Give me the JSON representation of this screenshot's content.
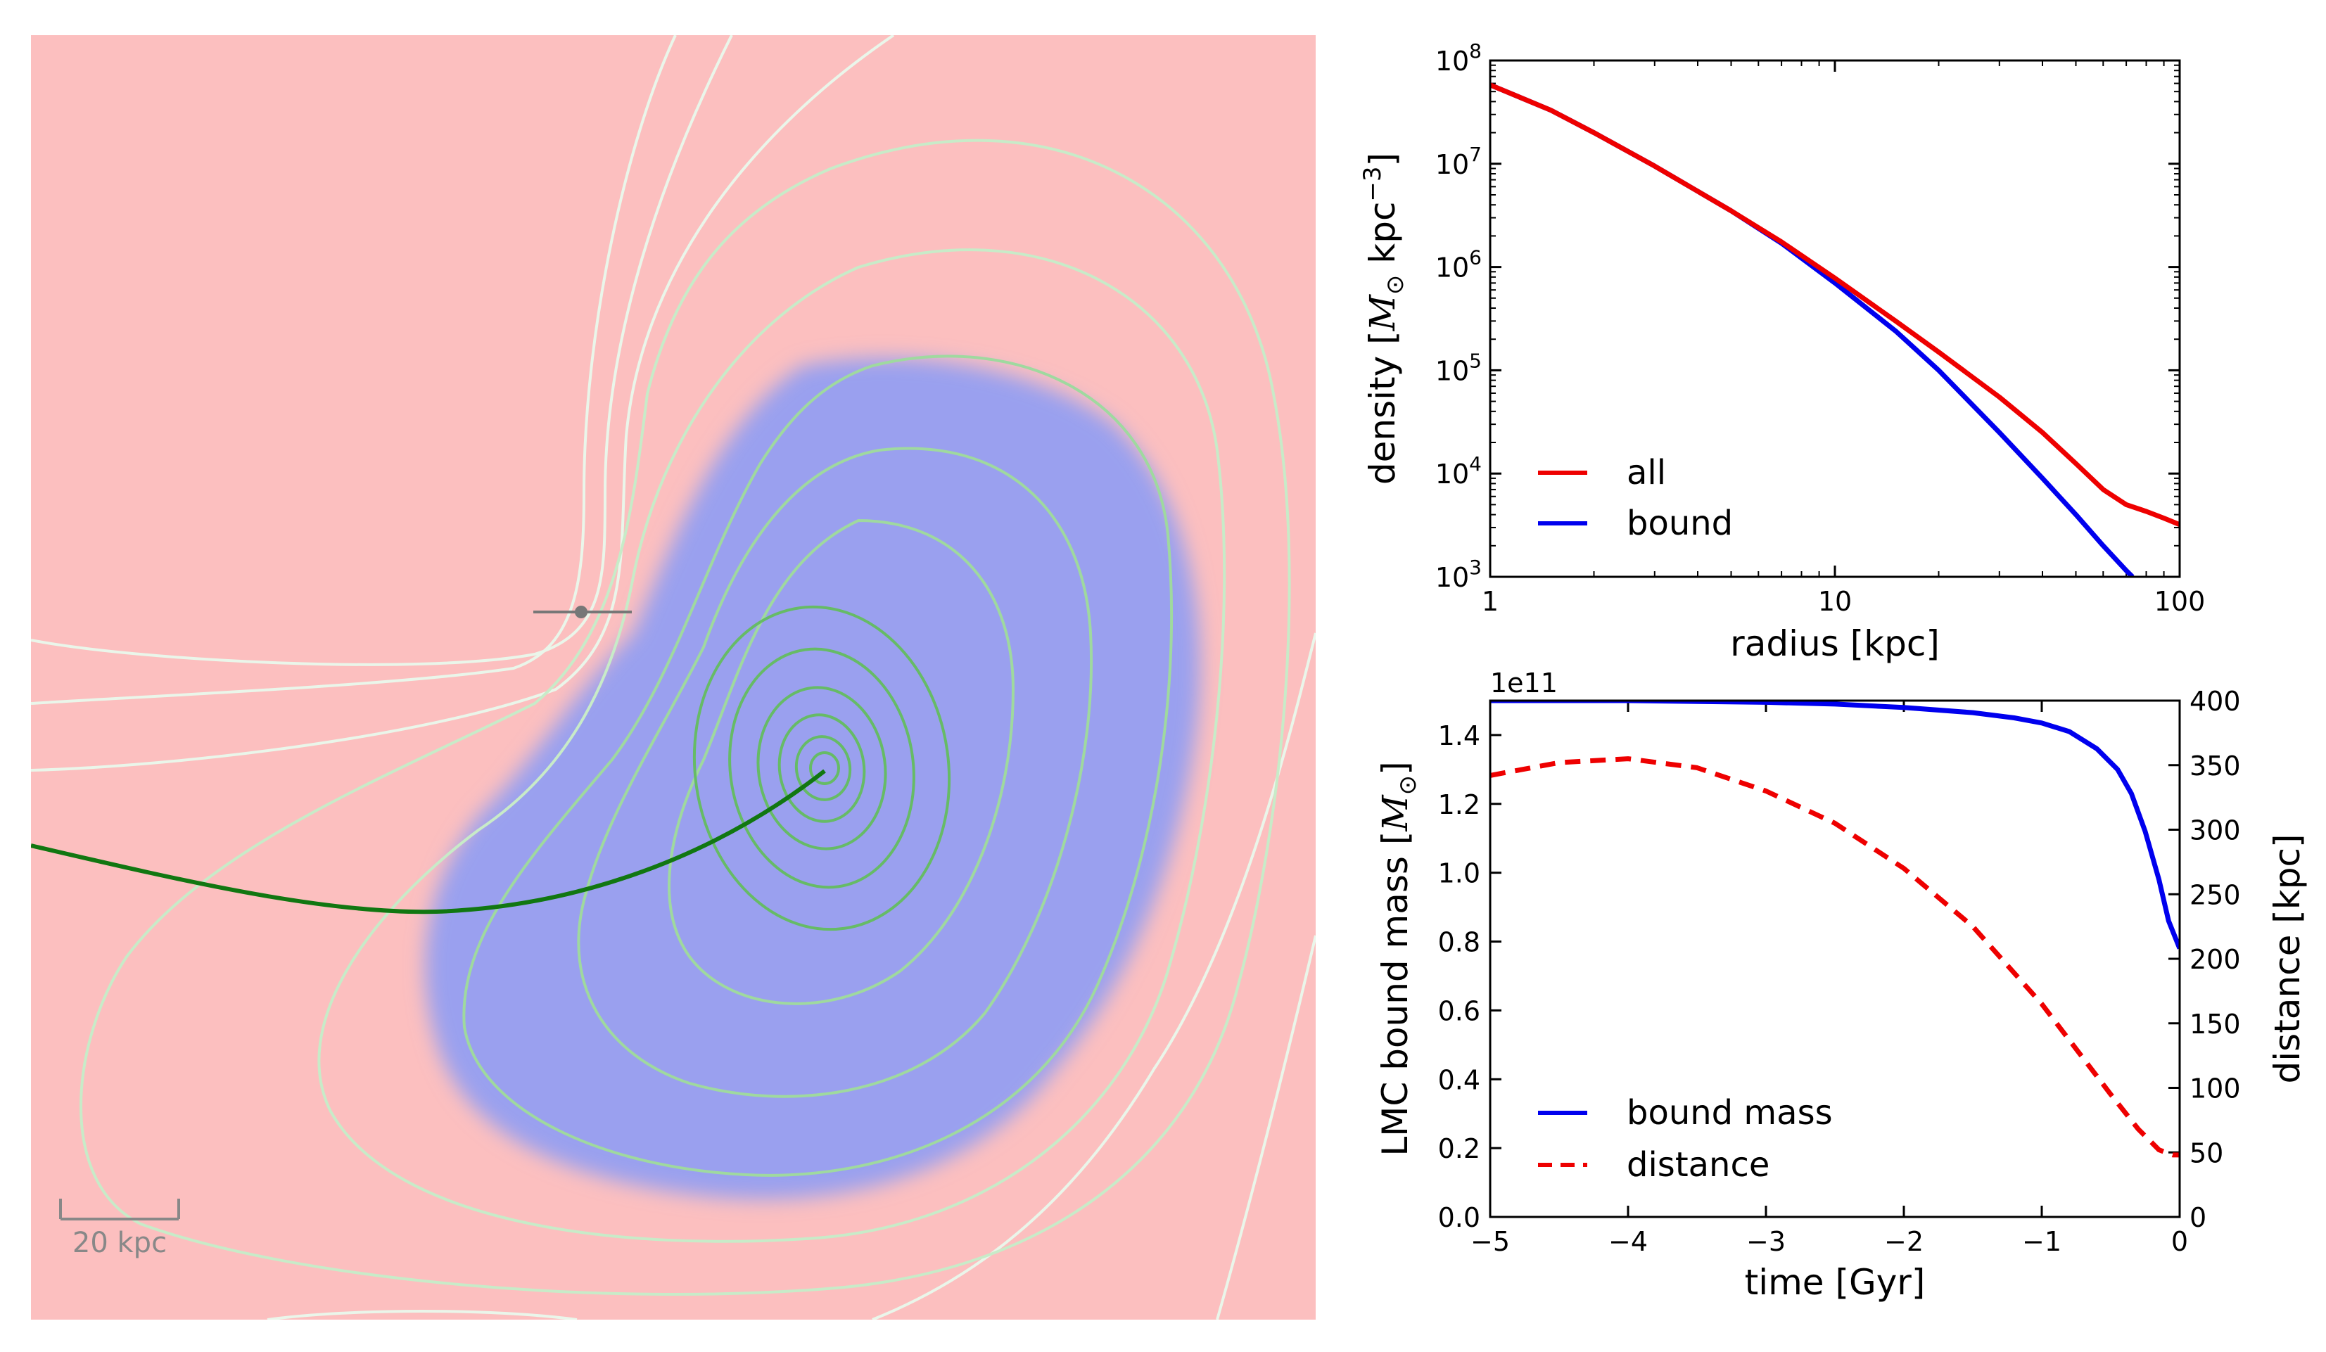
{
  "colors": {
    "background_red": "#fcbfbf",
    "bound_blue": "#9aa0ef",
    "orbit_green": "#117711",
    "contour_light": "#eaf6ea",
    "contour_mid": "#aedfae",
    "contour_dark": "#66bb66",
    "all_red": "#ee0000",
    "bound_line": "#0000ee",
    "marker_gray": "#777777"
  },
  "map_panel": {
    "scale_bar_label": "20 kpc"
  },
  "chart_data": [
    {
      "type": "line",
      "name": "density_profile",
      "xscale": "log",
      "yscale": "log",
      "xlabel": "radius [kpc]",
      "ylabel_prefix": "density [",
      "ylabel_math": "M",
      "ylabel_sub": "⊙",
      "ylabel_suffix": " kpc",
      "ylabel_sup": "−3",
      "ylabel_end": "]",
      "xlim": [
        1,
        100
      ],
      "ylim": [
        1000,
        100000000
      ],
      "xticks": [
        {
          "value": 1,
          "label": "1"
        },
        {
          "value": 10,
          "label": "10"
        },
        {
          "value": 100,
          "label": "100"
        }
      ],
      "yticks": [
        {
          "value": 1000,
          "base": "10",
          "exp": "3"
        },
        {
          "value": 10000,
          "base": "10",
          "exp": "4"
        },
        {
          "value": 100000,
          "base": "10",
          "exp": "5"
        },
        {
          "value": 1000000,
          "base": "10",
          "exp": "6"
        },
        {
          "value": 10000000,
          "base": "10",
          "exp": "7"
        },
        {
          "value": 100000000,
          "base": "10",
          "exp": "8"
        }
      ],
      "legend_position": "lower-left",
      "series": [
        {
          "name": "all",
          "color": "#ee0000",
          "style": "solid",
          "x": [
            1,
            1.5,
            2,
            3,
            5,
            7,
            10,
            15,
            20,
            30,
            40,
            50,
            60,
            70,
            80,
            90,
            100
          ],
          "y": [
            58000000,
            33000000,
            20000000,
            9500000,
            3500000,
            1750000,
            780000,
            300000,
            150000,
            55000,
            25000,
            12500,
            7000,
            5000,
            4300,
            3700,
            3200
          ]
        },
        {
          "name": "bound",
          "color": "#0000ee",
          "style": "solid",
          "x": [
            1,
            1.5,
            2,
            3,
            5,
            7,
            10,
            15,
            20,
            30,
            40,
            50,
            60,
            70,
            73
          ],
          "y": [
            58000000,
            33000000,
            20000000,
            9500000,
            3500000,
            1700000,
            700000,
            240000,
            100000,
            25000,
            9000,
            4000,
            2000,
            1150,
            1000
          ]
        }
      ]
    },
    {
      "type": "line",
      "name": "mass_distance_history",
      "xlabel": "time [Gyr]",
      "ylabel_left_prefix": "LMC bound mass [",
      "ylabel_left_math": "M",
      "ylabel_left_sub": "⊙",
      "ylabel_left_end": "]",
      "ylabel_right": "distance [kpc]",
      "offset_label": "1e11",
      "xlim": [
        -5,
        0
      ],
      "ylim_left": [
        0,
        1.5
      ],
      "ylim_right": [
        0,
        400
      ],
      "xticks": [
        {
          "value": -5,
          "label": "−5"
        },
        {
          "value": -4,
          "label": "−4"
        },
        {
          "value": -3,
          "label": "−3"
        },
        {
          "value": -2,
          "label": "−2"
        },
        {
          "value": -1,
          "label": "−1"
        },
        {
          "value": 0,
          "label": "0"
        }
      ],
      "yticks_left": [
        {
          "value": 0,
          "label": "0.0"
        },
        {
          "value": 0.2,
          "label": "0.2"
        },
        {
          "value": 0.4,
          "label": "0.4"
        },
        {
          "value": 0.6,
          "label": "0.6"
        },
        {
          "value": 0.8,
          "label": "0.8"
        },
        {
          "value": 1.0,
          "label": "1.0"
        },
        {
          "value": 1.2,
          "label": "1.2"
        },
        {
          "value": 1.4,
          "label": "1.4"
        }
      ],
      "yticks_right": [
        {
          "value": 0,
          "label": "0"
        },
        {
          "value": 50,
          "label": "50"
        },
        {
          "value": 100,
          "label": "100"
        },
        {
          "value": 150,
          "label": "150"
        },
        {
          "value": 200,
          "label": "200"
        },
        {
          "value": 250,
          "label": "250"
        },
        {
          "value": 300,
          "label": "300"
        },
        {
          "value": 350,
          "label": "350"
        },
        {
          "value": 400,
          "label": "400"
        }
      ],
      "legend_position": "lower-left",
      "series": [
        {
          "name": "bound mass",
          "axis": "left",
          "color": "#0000ee",
          "style": "solid",
          "x": [
            -5,
            -4,
            -3,
            -2.5,
            -2,
            -1.5,
            -1.2,
            -1,
            -0.8,
            -0.6,
            -0.45,
            -0.35,
            -0.25,
            -0.15,
            -0.08,
            0
          ],
          "y": [
            1.5,
            1.5,
            1.495,
            1.49,
            1.48,
            1.465,
            1.45,
            1.435,
            1.41,
            1.36,
            1.3,
            1.23,
            1.12,
            0.98,
            0.86,
            0.78
          ]
        },
        {
          "name": "distance",
          "axis": "right",
          "color": "#ee0000",
          "style": "dashed",
          "x": [
            -5,
            -4.5,
            -4,
            -3.5,
            -3,
            -2.5,
            -2,
            -1.5,
            -1,
            -0.5,
            -0.3,
            -0.15,
            -0.05,
            0
          ],
          "y": [
            342,
            352,
            355,
            348,
            330,
            305,
            270,
            225,
            165,
            95,
            68,
            52,
            48,
            48
          ]
        }
      ]
    }
  ]
}
